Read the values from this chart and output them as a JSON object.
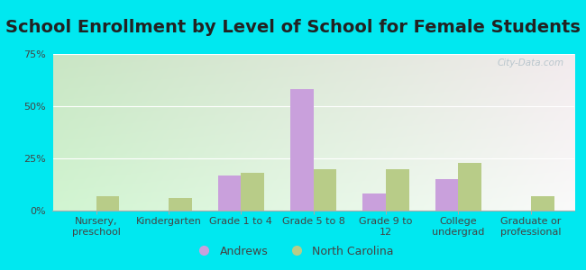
{
  "title": "School Enrollment by Level of School for Female Students",
  "categories": [
    "Nursery,\npreschool",
    "Kindergarten",
    "Grade 1 to 4",
    "Grade 5 to 8",
    "Grade 9 to\n12",
    "College\nundergrad",
    "Graduate or\nprofessional"
  ],
  "andrews": [
    0,
    0,
    17,
    58,
    8,
    15,
    0
  ],
  "north_carolina": [
    7,
    6,
    18,
    20,
    20,
    23,
    7
  ],
  "andrews_color": "#c9a0dc",
  "nc_color": "#b8cc88",
  "background_color": "#00e8f0",
  "ylim": [
    0,
    75
  ],
  "yticks": [
    0,
    25,
    50,
    75
  ],
  "ytick_labels": [
    "0%",
    "25%",
    "50%",
    "75%"
  ],
  "legend_labels": [
    "Andrews",
    "North Carolina"
  ],
  "watermark": "City-Data.com",
  "title_fontsize": 14,
  "tick_fontsize": 8,
  "legend_fontsize": 9
}
